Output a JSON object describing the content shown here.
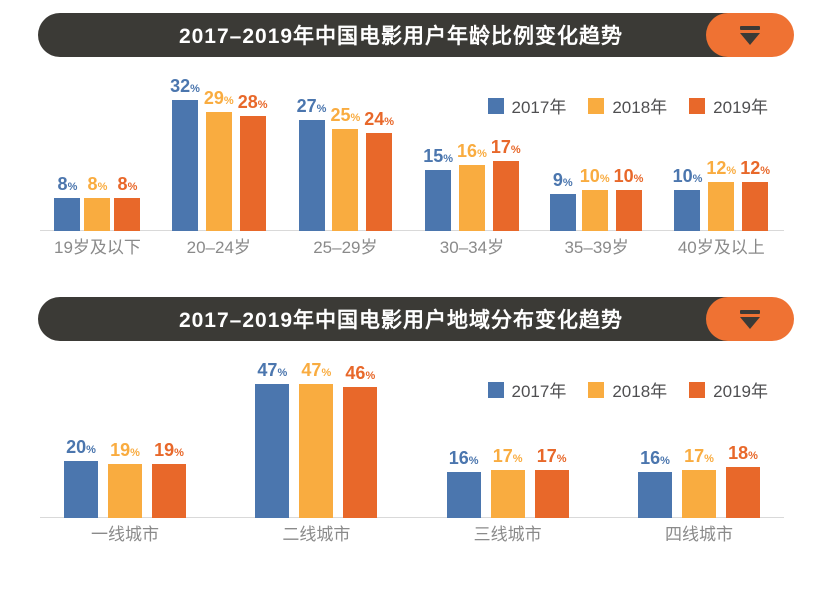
{
  "icons": {
    "header_button_icon": "triangle-down-icon"
  },
  "colors": {
    "header_bg": "#3B3A36",
    "header_badge": "#EF7233",
    "series_2017": "#4B76AE",
    "series_2018": "#F9AC40",
    "series_2019": "#E8682A",
    "axis_line": "#D9D9D9",
    "category_text": "#8A8A8A",
    "legend_text": "#4F4F51"
  },
  "chart_data": [
    {
      "type": "bar",
      "title": "2017–2019年中国电影用户年龄比例变化趋势",
      "unit": "%",
      "categories": [
        "19岁及以下",
        "20–24岁",
        "25–29岁",
        "30–34岁",
        "35–39岁",
        "40岁及以上"
      ],
      "series": [
        {
          "name": "2017年",
          "color": "#4B76AE",
          "values": [
            8,
            32,
            27,
            15,
            9,
            10
          ]
        },
        {
          "name": "2018年",
          "color": "#F9AC40",
          "values": [
            8,
            29,
            25,
            16,
            10,
            12
          ]
        },
        {
          "name": "2019年",
          "color": "#E8682A",
          "values": [
            8,
            28,
            24,
            17,
            10,
            12
          ]
        }
      ],
      "legend_position": "top-right",
      "ylim": [
        0,
        35
      ],
      "grid": false,
      "value_labels": true
    },
    {
      "type": "bar",
      "title": "2017–2019年中国电影用户地域分布变化趋势",
      "unit": "%",
      "categories": [
        "一线城市",
        "二线城市",
        "三线城市",
        "四线城市"
      ],
      "series": [
        {
          "name": "2017年",
          "color": "#4B76AE",
          "values": [
            20,
            47,
            16,
            16
          ]
        },
        {
          "name": "2018年",
          "color": "#F9AC40",
          "values": [
            19,
            47,
            17,
            17
          ]
        },
        {
          "name": "2019年",
          "color": "#E8682A",
          "values": [
            19,
            46,
            17,
            18
          ]
        }
      ],
      "legend_position": "top-right",
      "ylim": [
        0,
        50
      ],
      "grid": false,
      "value_labels": true
    }
  ]
}
